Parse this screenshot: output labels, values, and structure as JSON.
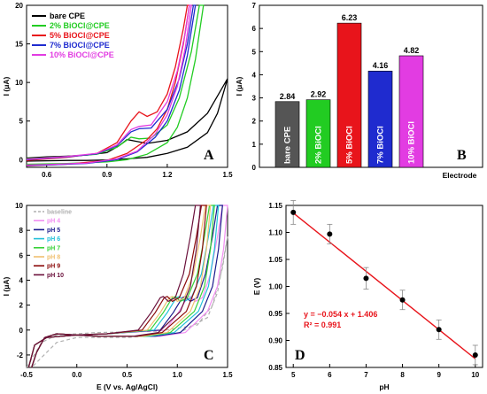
{
  "chart_data": [
    {
      "panel": "A",
      "type": "line",
      "xlabel": "",
      "ylabel": "I (μA)",
      "xlim": [
        0.5,
        1.5
      ],
      "ylim": [
        -1,
        20
      ],
      "xticks": [
        "0.6",
        "0.9",
        "1.2",
        "1.5"
      ],
      "yticks": [
        "0",
        "5",
        "10",
        "15",
        "20"
      ],
      "legend": "top-left",
      "series": [
        {
          "name": "bare CPE",
          "color": "#000000",
          "peak_x": 1.02,
          "peak_y": 2.6,
          "onset": 1.35,
          "steep": 0.045,
          "fwd": [
            [
              0.5,
              0.2
            ],
            [
              0.6,
              0.35
            ],
            [
              0.7,
              0.45
            ],
            [
              0.8,
              0.6
            ],
            [
              0.9,
              0.9
            ],
            [
              0.96,
              1.8
            ],
            [
              1.0,
              2.6
            ],
            [
              1.04,
              2.4
            ],
            [
              1.1,
              2.1
            ],
            [
              1.2,
              2.5
            ],
            [
              1.3,
              3.6
            ],
            [
              1.4,
              6.0
            ],
            [
              1.5,
              10.5
            ]
          ],
          "rev": [
            [
              1.5,
              10.5
            ],
            [
              1.45,
              6.0
            ],
            [
              1.4,
              3.5
            ],
            [
              1.3,
              1.6
            ],
            [
              1.2,
              0.8
            ],
            [
              1.1,
              0.3
            ],
            [
              1.0,
              0.1
            ],
            [
              0.9,
              -0.05
            ],
            [
              0.8,
              -0.1
            ],
            [
              0.7,
              -0.1
            ],
            [
              0.6,
              -0.15
            ],
            [
              0.5,
              -0.2
            ]
          ]
        },
        {
          "name": "2% BiOCl@CPE",
          "color": "#22cc22",
          "fwd": [
            [
              0.5,
              0.1
            ],
            [
              0.7,
              0.4
            ],
            [
              0.85,
              0.7
            ],
            [
              0.95,
              1.6
            ],
            [
              1.02,
              2.9
            ],
            [
              1.06,
              2.7
            ],
            [
              1.12,
              2.8
            ],
            [
              1.2,
              4.5
            ],
            [
              1.26,
              8.0
            ],
            [
              1.32,
              14.0
            ],
            [
              1.36,
              20.0
            ]
          ],
          "rev": [
            [
              1.38,
              20.0
            ],
            [
              1.34,
              13.0
            ],
            [
              1.3,
              8.0
            ],
            [
              1.25,
              4.2
            ],
            [
              1.2,
              2.2
            ],
            [
              1.1,
              0.7
            ],
            [
              1.0,
              0.0
            ],
            [
              0.9,
              -0.3
            ],
            [
              0.7,
              -0.5
            ],
            [
              0.5,
              -0.6
            ]
          ]
        },
        {
          "name": "5% BiOCl@CPE",
          "color": "#e8141b",
          "fwd": [
            [
              0.5,
              -0.1
            ],
            [
              0.7,
              0.3
            ],
            [
              0.85,
              0.8
            ],
            [
              0.95,
              2.2
            ],
            [
              1.02,
              5.0
            ],
            [
              1.06,
              6.2
            ],
            [
              1.1,
              5.6
            ],
            [
              1.15,
              6.2
            ],
            [
              1.2,
              8.5
            ],
            [
              1.24,
              12.0
            ],
            [
              1.28,
              17.0
            ],
            [
              1.3,
              20.0
            ]
          ],
          "rev": [
            [
              1.31,
              20.0
            ],
            [
              1.28,
              15.0
            ],
            [
              1.24,
              10.0
            ],
            [
              1.2,
              6.5
            ],
            [
              1.15,
              4.0
            ],
            [
              1.1,
              2.6
            ],
            [
              1.0,
              0.8
            ],
            [
              0.9,
              -0.1
            ],
            [
              0.7,
              -0.6
            ],
            [
              0.5,
              -0.8
            ]
          ]
        },
        {
          "name": "7% BiOCl@CPE",
          "color": "#1f2bcf",
          "fwd": [
            [
              0.5,
              0.0
            ],
            [
              0.7,
              0.35
            ],
            [
              0.85,
              0.75
            ],
            [
              0.95,
              1.8
            ],
            [
              1.02,
              3.6
            ],
            [
              1.06,
              4.0
            ],
            [
              1.12,
              4.1
            ],
            [
              1.2,
              6.5
            ],
            [
              1.26,
              10.5
            ],
            [
              1.3,
              15.0
            ],
            [
              1.33,
              20.0
            ]
          ],
          "rev": [
            [
              1.34,
              20.0
            ],
            [
              1.3,
              13.5
            ],
            [
              1.26,
              9.0
            ],
            [
              1.2,
              5.0
            ],
            [
              1.14,
              2.9
            ],
            [
              1.05,
              1.0
            ],
            [
              0.95,
              0.0
            ],
            [
              0.8,
              -0.5
            ],
            [
              0.6,
              -0.7
            ],
            [
              0.5,
              -0.75
            ]
          ]
        },
        {
          "name": "10% BiOCl@CPE",
          "color": "#e23ce2",
          "fwd": [
            [
              0.5,
              0.05
            ],
            [
              0.7,
              0.4
            ],
            [
              0.85,
              0.8
            ],
            [
              0.95,
              1.9
            ],
            [
              1.02,
              3.9
            ],
            [
              1.06,
              4.3
            ],
            [
              1.12,
              4.5
            ],
            [
              1.2,
              7.5
            ],
            [
              1.25,
              11.5
            ],
            [
              1.29,
              16.5
            ],
            [
              1.31,
              20.0
            ]
          ],
          "rev": [
            [
              1.32,
              20.0
            ],
            [
              1.29,
              14.5
            ],
            [
              1.25,
              9.5
            ],
            [
              1.2,
              5.8
            ],
            [
              1.14,
              3.3
            ],
            [
              1.05,
              1.1
            ],
            [
              0.95,
              0.1
            ],
            [
              0.8,
              -0.45
            ],
            [
              0.6,
              -0.65
            ],
            [
              0.5,
              -0.7
            ]
          ]
        }
      ]
    },
    {
      "panel": "B",
      "type": "bar",
      "xlabel": "Electrode",
      "ylabel": "I (μA)",
      "ylim": [
        0,
        7
      ],
      "yticks": [
        "0",
        "1",
        "2",
        "3",
        "4",
        "5",
        "6",
        "7"
      ],
      "categories": [
        "bare CPE",
        "2% BiOCl",
        "5% BiOCl",
        "7% BiOCl",
        "10% BiOCl"
      ],
      "values": [
        2.84,
        2.92,
        6.23,
        4.16,
        4.82
      ],
      "value_labels": [
        "2.84",
        "2.92",
        "6.23",
        "4.16",
        "4.82"
      ],
      "colors": [
        "#555555",
        "#22cc22",
        "#e8141b",
        "#1f2bcf",
        "#e23ce2"
      ]
    },
    {
      "panel": "C",
      "type": "line",
      "xlabel": "E (V vs. Ag/AgCl)",
      "ylabel": "I (μA)",
      "xlim": [
        -0.5,
        1.5
      ],
      "ylim": [
        -3,
        10
      ],
      "xticks": [
        "-0.5",
        "0.0",
        "0.5",
        "1.0",
        "1.5"
      ],
      "yticks": [
        "-2",
        "0",
        "2",
        "4",
        "6",
        "8",
        "10"
      ],
      "legend": "top-left",
      "series": [
        {
          "name": "baseline",
          "color": "#b0b0b0",
          "dashed": true,
          "fwd": [
            [
              -0.5,
              -3.0
            ],
            [
              -0.35,
              -1.0
            ],
            [
              -0.2,
              -0.4
            ],
            [
              0.2,
              -0.2
            ],
            [
              0.8,
              -0.1
            ],
            [
              1.2,
              0.4
            ],
            [
              1.35,
              2.0
            ],
            [
              1.45,
              5.0
            ],
            [
              1.5,
              7.5
            ]
          ],
          "rev": [
            [
              1.5,
              7.5
            ],
            [
              1.4,
              3.0
            ],
            [
              1.3,
              1.0
            ],
            [
              1.0,
              -0.3
            ],
            [
              0.5,
              -0.6
            ],
            [
              0.0,
              -0.6
            ],
            [
              -0.2,
              -1.0
            ],
            [
              -0.35,
              -2.2
            ],
            [
              -0.45,
              -3.0
            ]
          ]
        },
        {
          "name": "pH 4",
          "color": "#f28ef2",
          "peak": 1.13,
          "end": 1.45
        },
        {
          "name": "pH 5",
          "color": "#1a1a8c",
          "peak": 1.08,
          "end": 1.4
        },
        {
          "name": "pH 6",
          "color": "#22c0d8",
          "peak": 1.02,
          "end": 1.36
        },
        {
          "name": "pH 7",
          "color": "#37d137",
          "peak": 0.98,
          "end": 1.32
        },
        {
          "name": "pH 8",
          "color": "#f0c070",
          "peak": 0.95,
          "end": 1.28
        },
        {
          "name": "pH 9",
          "color": "#8b0a0a",
          "peak": 0.9,
          "end": 1.24
        },
        {
          "name": "pH 10",
          "color": "#6a0f3a",
          "peak": 0.86,
          "end": 1.18
        }
      ]
    },
    {
      "panel": "D",
      "type": "scatter",
      "xlabel": "pH",
      "ylabel": "E (V)",
      "xlim": [
        4.8,
        10.2
      ],
      "ylim": [
        0.85,
        1.15
      ],
      "xticks": [
        "5",
        "6",
        "7",
        "8",
        "9",
        "10"
      ],
      "yticks": [
        "0.85",
        "0.90",
        "0.95",
        "1.00",
        "1.05",
        "1.10",
        "1.15"
      ],
      "x": [
        5,
        6,
        7,
        8,
        9,
        10
      ],
      "y": [
        1.137,
        1.097,
        1.015,
        0.975,
        0.92,
        0.873
      ],
      "err": [
        0.022,
        0.018,
        0.02,
        0.018,
        0.018,
        0.018
      ],
      "fit": {
        "slope": -0.054,
        "intercept": 1.406,
        "color": "#e8141b"
      },
      "annotation": [
        "y = −0.054 x + 1.406",
        "R² = 0.991"
      ]
    }
  ],
  "panel_letters": [
    "A",
    "B",
    "C",
    "D"
  ]
}
